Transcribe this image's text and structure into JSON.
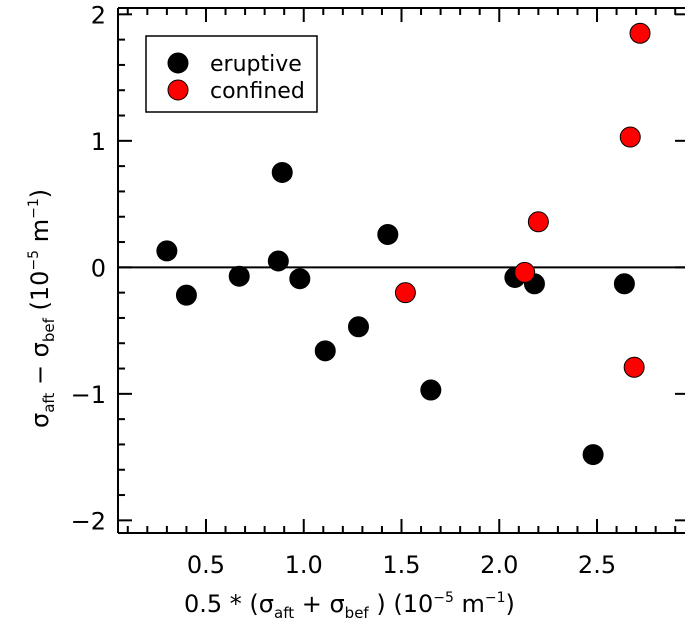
{
  "chart_data": {
    "type": "scatter",
    "xlabel": "0.5 * (σ_aft + σ_bef ) (10^-5 m^-1)",
    "ylabel": "σ_aft − σ_bef (10^-5 m^-1)",
    "xlim": [
      0.05,
      2.95
    ],
    "ylim": [
      -2.1,
      2.05
    ],
    "x_ticks": [
      {
        "value": 0.5,
        "label": "0.5"
      },
      {
        "value": 1.0,
        "label": "1.0"
      },
      {
        "value": 1.5,
        "label": "1.5"
      },
      {
        "value": 2.0,
        "label": "2.0"
      },
      {
        "value": 2.5,
        "label": "2.5"
      }
    ],
    "y_ticks": [
      {
        "value": -2,
        "label": "−2"
      },
      {
        "value": -1,
        "label": "−1"
      },
      {
        "value": 0,
        "label": "0"
      },
      {
        "value": 1,
        "label": "1"
      },
      {
        "value": 2,
        "label": "2"
      }
    ],
    "reference_line_y": 0,
    "legend_position": "top-left",
    "series": [
      {
        "name": "eruptive",
        "color": "#000000",
        "points": [
          {
            "x": 0.3,
            "y": 0.13
          },
          {
            "x": 0.4,
            "y": -0.22
          },
          {
            "x": 0.67,
            "y": -0.07
          },
          {
            "x": 0.87,
            "y": 0.05
          },
          {
            "x": 0.89,
            "y": 0.75
          },
          {
            "x": 0.98,
            "y": -0.09
          },
          {
            "x": 1.11,
            "y": -0.66
          },
          {
            "x": 1.28,
            "y": -0.47
          },
          {
            "x": 1.43,
            "y": 0.26
          },
          {
            "x": 1.65,
            "y": -0.97
          },
          {
            "x": 2.08,
            "y": -0.08
          },
          {
            "x": 2.18,
            "y": -0.13
          },
          {
            "x": 2.48,
            "y": -1.48
          },
          {
            "x": 2.64,
            "y": -0.13
          }
        ]
      },
      {
        "name": "confined",
        "color": "#ff0000",
        "points": [
          {
            "x": 1.52,
            "y": -0.2
          },
          {
            "x": 2.13,
            "y": -0.04
          },
          {
            "x": 2.2,
            "y": 0.36
          },
          {
            "x": 2.67,
            "y": 1.03
          },
          {
            "x": 2.69,
            "y": -0.79
          },
          {
            "x": 2.72,
            "y": 1.85
          }
        ]
      }
    ]
  }
}
